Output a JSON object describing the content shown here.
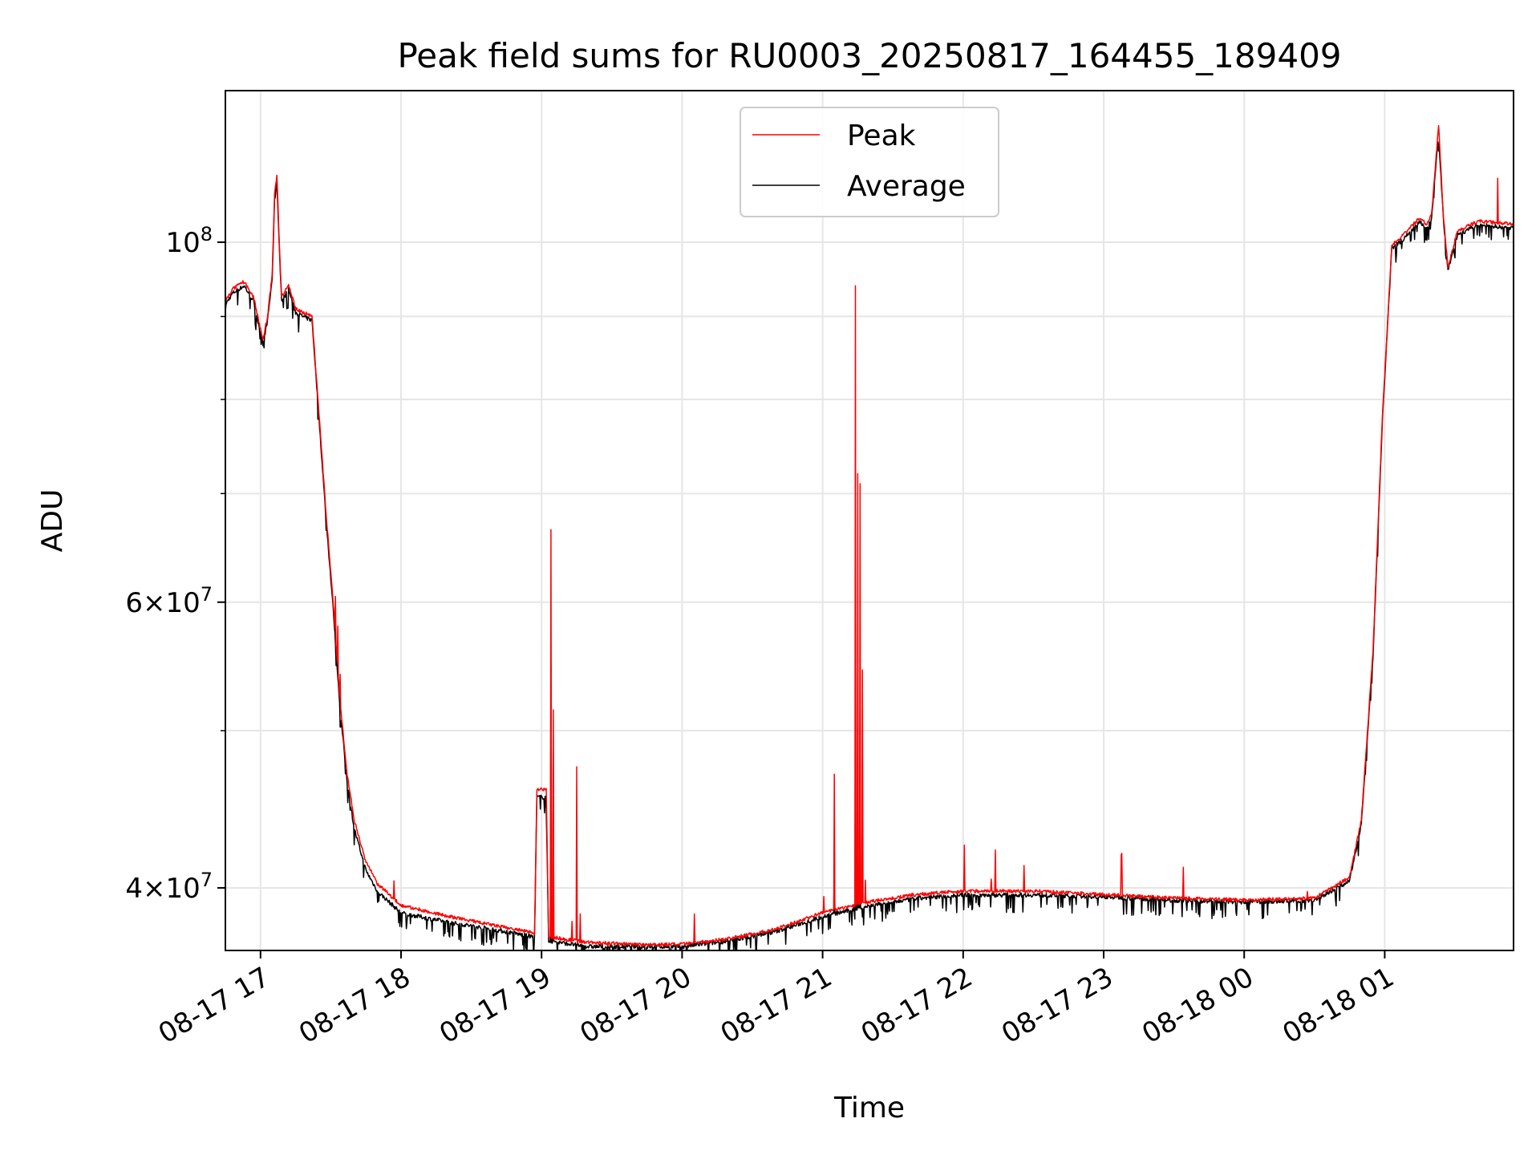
{
  "chart_data": {
    "type": "line",
    "title": "Peak field sums for RU0003_20250817_164455_189409",
    "xlabel": "Time",
    "ylabel": "ADU",
    "yscale": "log",
    "grid": true,
    "legend_position": "top-center",
    "xlim": [
      "2025-08-17 16:45",
      "2025-08-18 01:55"
    ],
    "ylim": [
      36600000,
      124000000
    ],
    "x_ticks": [
      {
        "time": "2025-08-17 17:00",
        "label": "08-17 17"
      },
      {
        "time": "2025-08-17 18:00",
        "label": "08-17 18"
      },
      {
        "time": "2025-08-17 19:00",
        "label": "08-17 19"
      },
      {
        "time": "2025-08-17 20:00",
        "label": "08-17 20"
      },
      {
        "time": "2025-08-17 21:00",
        "label": "08-17 21"
      },
      {
        "time": "2025-08-17 22:00",
        "label": "08-17 22"
      },
      {
        "time": "2025-08-17 23:00",
        "label": "08-17 23"
      },
      {
        "time": "2025-08-18 00:00",
        "label": "08-18 00"
      },
      {
        "time": "2025-08-18 01:00",
        "label": "08-18 01"
      }
    ],
    "y_major_ticks": [
      {
        "value": 40000000,
        "base": "4",
        "exp": "7"
      },
      {
        "value": 60000000,
        "base": "6",
        "exp": "7"
      },
      {
        "value": 100000000,
        "base": "",
        "exp": "8"
      }
    ],
    "y_minor_ticks": [
      50000000,
      70000000,
      80000000,
      90000000
    ],
    "series": [
      {
        "name": "Peak",
        "color": "#ff0000",
        "points": [
          [
            "2025-08-17 16:45",
            92000000
          ],
          [
            "2025-08-17 16:48",
            93500000
          ],
          [
            "2025-08-17 16:53",
            94500000
          ],
          [
            "2025-08-17 16:57",
            92500000
          ],
          [
            "2025-08-17 17:01",
            87000000
          ],
          [
            "2025-08-17 17:03",
            90000000
          ],
          [
            "2025-08-17 17:05",
            95500000
          ],
          [
            "2025-08-17 17:06",
            107000000
          ],
          [
            "2025-08-17 17:07",
            110000000
          ],
          [
            "2025-08-17 17:08",
            100000000
          ],
          [
            "2025-08-17 17:09",
            92500000
          ],
          [
            "2025-08-17 17:12",
            94000000
          ],
          [
            "2025-08-17 17:15",
            91000000
          ],
          [
            "2025-08-17 17:18",
            90500000
          ],
          [
            "2025-08-17 17:22",
            90000000
          ],
          [
            "2025-08-17 17:24",
            82000000
          ],
          [
            "2025-08-17 17:28",
            68000000
          ],
          [
            "2025-08-17 17:31",
            60000000
          ],
          [
            "2025-08-17 17:34",
            52000000
          ],
          [
            "2025-08-17 17:37",
            47000000
          ],
          [
            "2025-08-17 17:40",
            44000000
          ],
          [
            "2025-08-17 17:45",
            41500000
          ],
          [
            "2025-08-17 17:50",
            40200000
          ],
          [
            "2025-08-17 18:00",
            39000000
          ],
          [
            "2025-08-17 18:20",
            38400000
          ],
          [
            "2025-08-17 18:40",
            37900000
          ],
          [
            "2025-08-17 18:57",
            37500000
          ],
          [
            "2025-08-17 18:58",
            46000000
          ],
          [
            "2025-08-17 19:02",
            46000000
          ],
          [
            "2025-08-17 19:03",
            37300000
          ],
          [
            "2025-08-17 19:20",
            37000000
          ],
          [
            "2025-08-17 19:40",
            36900000
          ],
          [
            "2025-08-17 20:00",
            36900000
          ],
          [
            "2025-08-17 20:20",
            37200000
          ],
          [
            "2025-08-17 20:40",
            37700000
          ],
          [
            "2025-08-17 21:00",
            38600000
          ],
          [
            "2025-08-17 21:20",
            39200000
          ],
          [
            "2025-08-17 21:40",
            39600000
          ],
          [
            "2025-08-17 22:00",
            39800000
          ],
          [
            "2025-08-17 22:30",
            39800000
          ],
          [
            "2025-08-17 23:00",
            39600000
          ],
          [
            "2025-08-17 23:30",
            39400000
          ],
          [
            "2025-08-18 00:00",
            39300000
          ],
          [
            "2025-08-18 00:30",
            39400000
          ],
          [
            "2025-08-18 00:45",
            40600000
          ],
          [
            "2025-08-18 00:50",
            44000000
          ],
          [
            "2025-08-18 00:55",
            56000000
          ],
          [
            "2025-08-18 00:59",
            78000000
          ],
          [
            "2025-08-18 01:03",
            99500000
          ],
          [
            "2025-08-18 01:08",
            101000000
          ],
          [
            "2025-08-18 01:15",
            103500000
          ],
          [
            "2025-08-18 01:18",
            102500000
          ],
          [
            "2025-08-18 01:20",
            104000000
          ],
          [
            "2025-08-18 01:22",
            113000000
          ],
          [
            "2025-08-18 01:23",
            118000000
          ],
          [
            "2025-08-18 01:25",
            104000000
          ],
          [
            "2025-08-18 01:27",
            96500000
          ],
          [
            "2025-08-18 01:31",
            101500000
          ],
          [
            "2025-08-18 01:40",
            103000000
          ],
          [
            "2025-08-18 01:55",
            102500000
          ]
        ],
        "spikes": [
          [
            "2025-08-17 17:32",
            60500000
          ],
          [
            "2025-08-17 17:33",
            58000000
          ],
          [
            "2025-08-17 19:04",
            66500000
          ],
          [
            "2025-08-17 19:05",
            51500000
          ],
          [
            "2025-08-17 19:15",
            47500000
          ],
          [
            "2025-08-17 21:05",
            47000000
          ],
          [
            "2025-08-17 21:14",
            94000000
          ],
          [
            "2025-08-17 21:15",
            72000000
          ],
          [
            "2025-08-17 21:16",
            71000000
          ],
          [
            "2025-08-17 21:17",
            54500000
          ],
          [
            "2025-08-17 22:12",
            40500000
          ],
          [
            "2025-08-18 00:27",
            39800000
          ],
          [
            "2025-08-18 00:47",
            41800000
          ]
        ]
      },
      {
        "name": "Average",
        "color": "#000000",
        "points": [
          [
            "2025-08-17 16:45",
            91500000
          ],
          [
            "2025-08-17 16:48",
            93000000
          ],
          [
            "2025-08-17 16:53",
            94000000
          ],
          [
            "2025-08-17 16:57",
            92000000
          ],
          [
            "2025-08-17 17:01",
            86500000
          ],
          [
            "2025-08-17 17:03",
            89500000
          ],
          [
            "2025-08-17 17:05",
            95000000
          ],
          [
            "2025-08-17 17:06",
            106000000
          ],
          [
            "2025-08-17 17:07",
            109000000
          ],
          [
            "2025-08-17 17:08",
            99500000
          ],
          [
            "2025-08-17 17:09",
            92000000
          ],
          [
            "2025-08-17 17:12",
            93500000
          ],
          [
            "2025-08-17 17:15",
            90500000
          ],
          [
            "2025-08-17 17:18",
            90000000
          ],
          [
            "2025-08-17 17:22",
            89500000
          ],
          [
            "2025-08-17 17:24",
            81500000
          ],
          [
            "2025-08-17 17:28",
            67500000
          ],
          [
            "2025-08-17 17:31",
            59500000
          ],
          [
            "2025-08-17 17:34",
            51500000
          ],
          [
            "2025-08-17 17:37",
            46500000
          ],
          [
            "2025-08-17 17:40",
            43500000
          ],
          [
            "2025-08-17 17:45",
            41000000
          ],
          [
            "2025-08-17 17:50",
            39800000
          ],
          [
            "2025-08-17 18:00",
            38600000
          ],
          [
            "2025-08-17 18:20",
            38100000
          ],
          [
            "2025-08-17 18:40",
            37700000
          ],
          [
            "2025-08-17 18:57",
            37300000
          ],
          [
            "2025-08-17 18:58",
            45500000
          ],
          [
            "2025-08-17 19:02",
            45500000
          ],
          [
            "2025-08-17 19:03",
            37100000
          ],
          [
            "2025-08-17 19:20",
            36800000
          ],
          [
            "2025-08-17 19:40",
            36800000
          ],
          [
            "2025-08-17 20:00",
            36800000
          ],
          [
            "2025-08-17 20:20",
            37100000
          ],
          [
            "2025-08-17 20:40",
            37600000
          ],
          [
            "2025-08-17 21:00",
            38400000
          ],
          [
            "2025-08-17 21:20",
            39000000
          ],
          [
            "2025-08-17 21:40",
            39400000
          ],
          [
            "2025-08-17 22:00",
            39600000
          ],
          [
            "2025-08-17 22:30",
            39600000
          ],
          [
            "2025-08-17 23:00",
            39500000
          ],
          [
            "2025-08-17 23:30",
            39300000
          ],
          [
            "2025-08-18 00:00",
            39200000
          ],
          [
            "2025-08-18 00:30",
            39300000
          ],
          [
            "2025-08-18 00:45",
            40400000
          ],
          [
            "2025-08-18 00:50",
            43800000
          ],
          [
            "2025-08-18 00:55",
            55500000
          ],
          [
            "2025-08-18 00:59",
            77500000
          ],
          [
            "2025-08-18 01:03",
            99000000
          ],
          [
            "2025-08-18 01:08",
            100500000
          ],
          [
            "2025-08-18 01:15",
            103000000
          ],
          [
            "2025-08-18 01:18",
            102000000
          ],
          [
            "2025-08-18 01:20",
            103500000
          ],
          [
            "2025-08-18 01:22",
            112000000
          ],
          [
            "2025-08-18 01:23",
            116500000
          ],
          [
            "2025-08-18 01:25",
            103500000
          ],
          [
            "2025-08-18 01:27",
            96000000
          ],
          [
            "2025-08-18 01:31",
            101000000
          ],
          [
            "2025-08-18 01:40",
            102500000
          ],
          [
            "2025-08-18 01:55",
            102000000
          ]
        ],
        "spikes": [
          [
            "2025-08-17 19:04",
            55000000
          ],
          [
            "2025-08-17 19:05",
            50000000
          ],
          [
            "2025-08-17 21:05",
            42500000
          ],
          [
            "2025-08-17 21:14",
            48500000
          ],
          [
            "2025-08-17 21:15",
            54500000
          ],
          [
            "2025-08-17 21:16",
            53000000
          ]
        ]
      }
    ]
  }
}
